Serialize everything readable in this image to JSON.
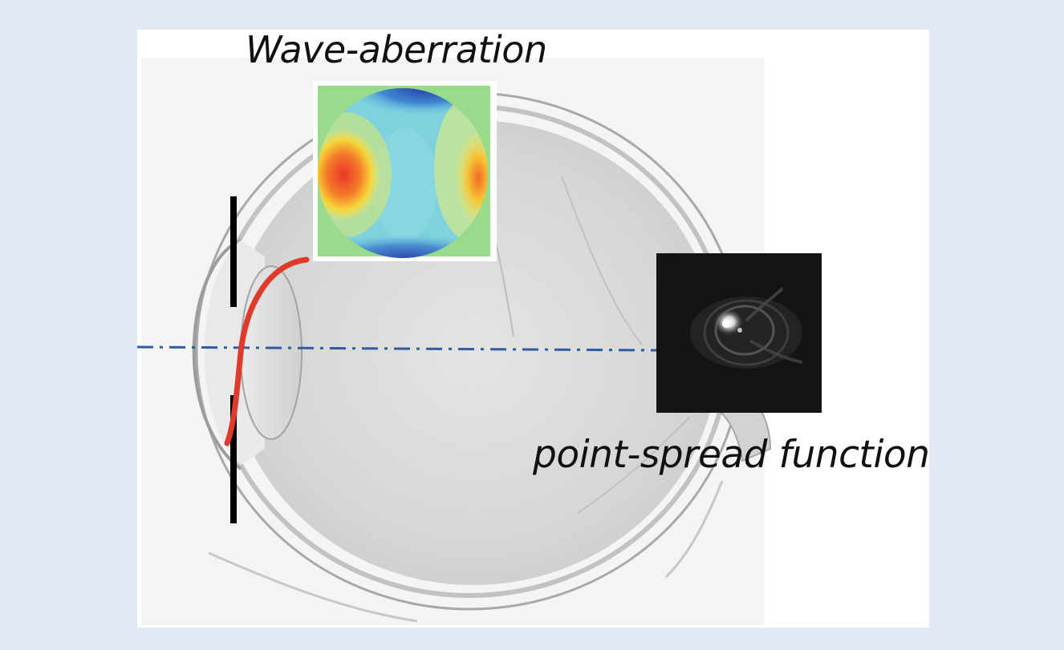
{
  "diagram": {
    "labels": {
      "wave_aberration": "Wave-aberration",
      "point_spread_function": "point-spread function"
    },
    "colors": {
      "page_background": "#e2e8f6",
      "panel": "#ffffff",
      "eye_body": "#d4d4d4",
      "wavefront": "#e03a2a",
      "optical_axis": "#2e5c9c",
      "aperture_stop": "#000000",
      "psf_background": "#141414"
    }
  }
}
